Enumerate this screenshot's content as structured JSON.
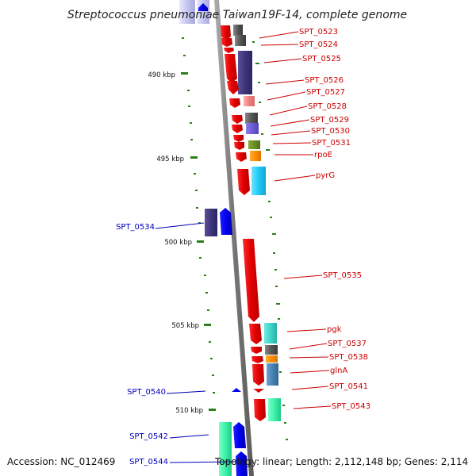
{
  "title": "Streptococcus pneumoniae Taiwan19F-14, complete genome",
  "footer": {
    "accession": "Accession: NC_012469",
    "summary": "Topology: linear; Length: 2,112,148 bp; Genes: 2,114"
  },
  "colors": {
    "backbone": "#888888",
    "tick": "#2e7d1b",
    "label_forward": "#cc0000",
    "label_reverse": "#0000bb",
    "cds_forward": "#ff0000",
    "cds_reverse": "#0000ff"
  },
  "scale_labels": [
    "490 kbp",
    "495 kbp",
    "500 kbp",
    "505 kbp",
    "510 kbp"
  ],
  "forward_genes": [
    "SPT_0523",
    "SPT_0524",
    "SPT_0525",
    "SPT_0526",
    "SPT_0527",
    "SPT_0528",
    "SPT_0529",
    "SPT_0530",
    "SPT_0531",
    "rpoE",
    "pyrG",
    "SPT_0535",
    "pgk",
    "SPT_0537",
    "SPT_0538",
    "glnA",
    "SPT_0541",
    "SPT_0543"
  ],
  "reverse_genes": [
    "SPT_0534",
    "SPT_0540",
    "SPT_0542",
    "SPT_0544"
  ]
}
